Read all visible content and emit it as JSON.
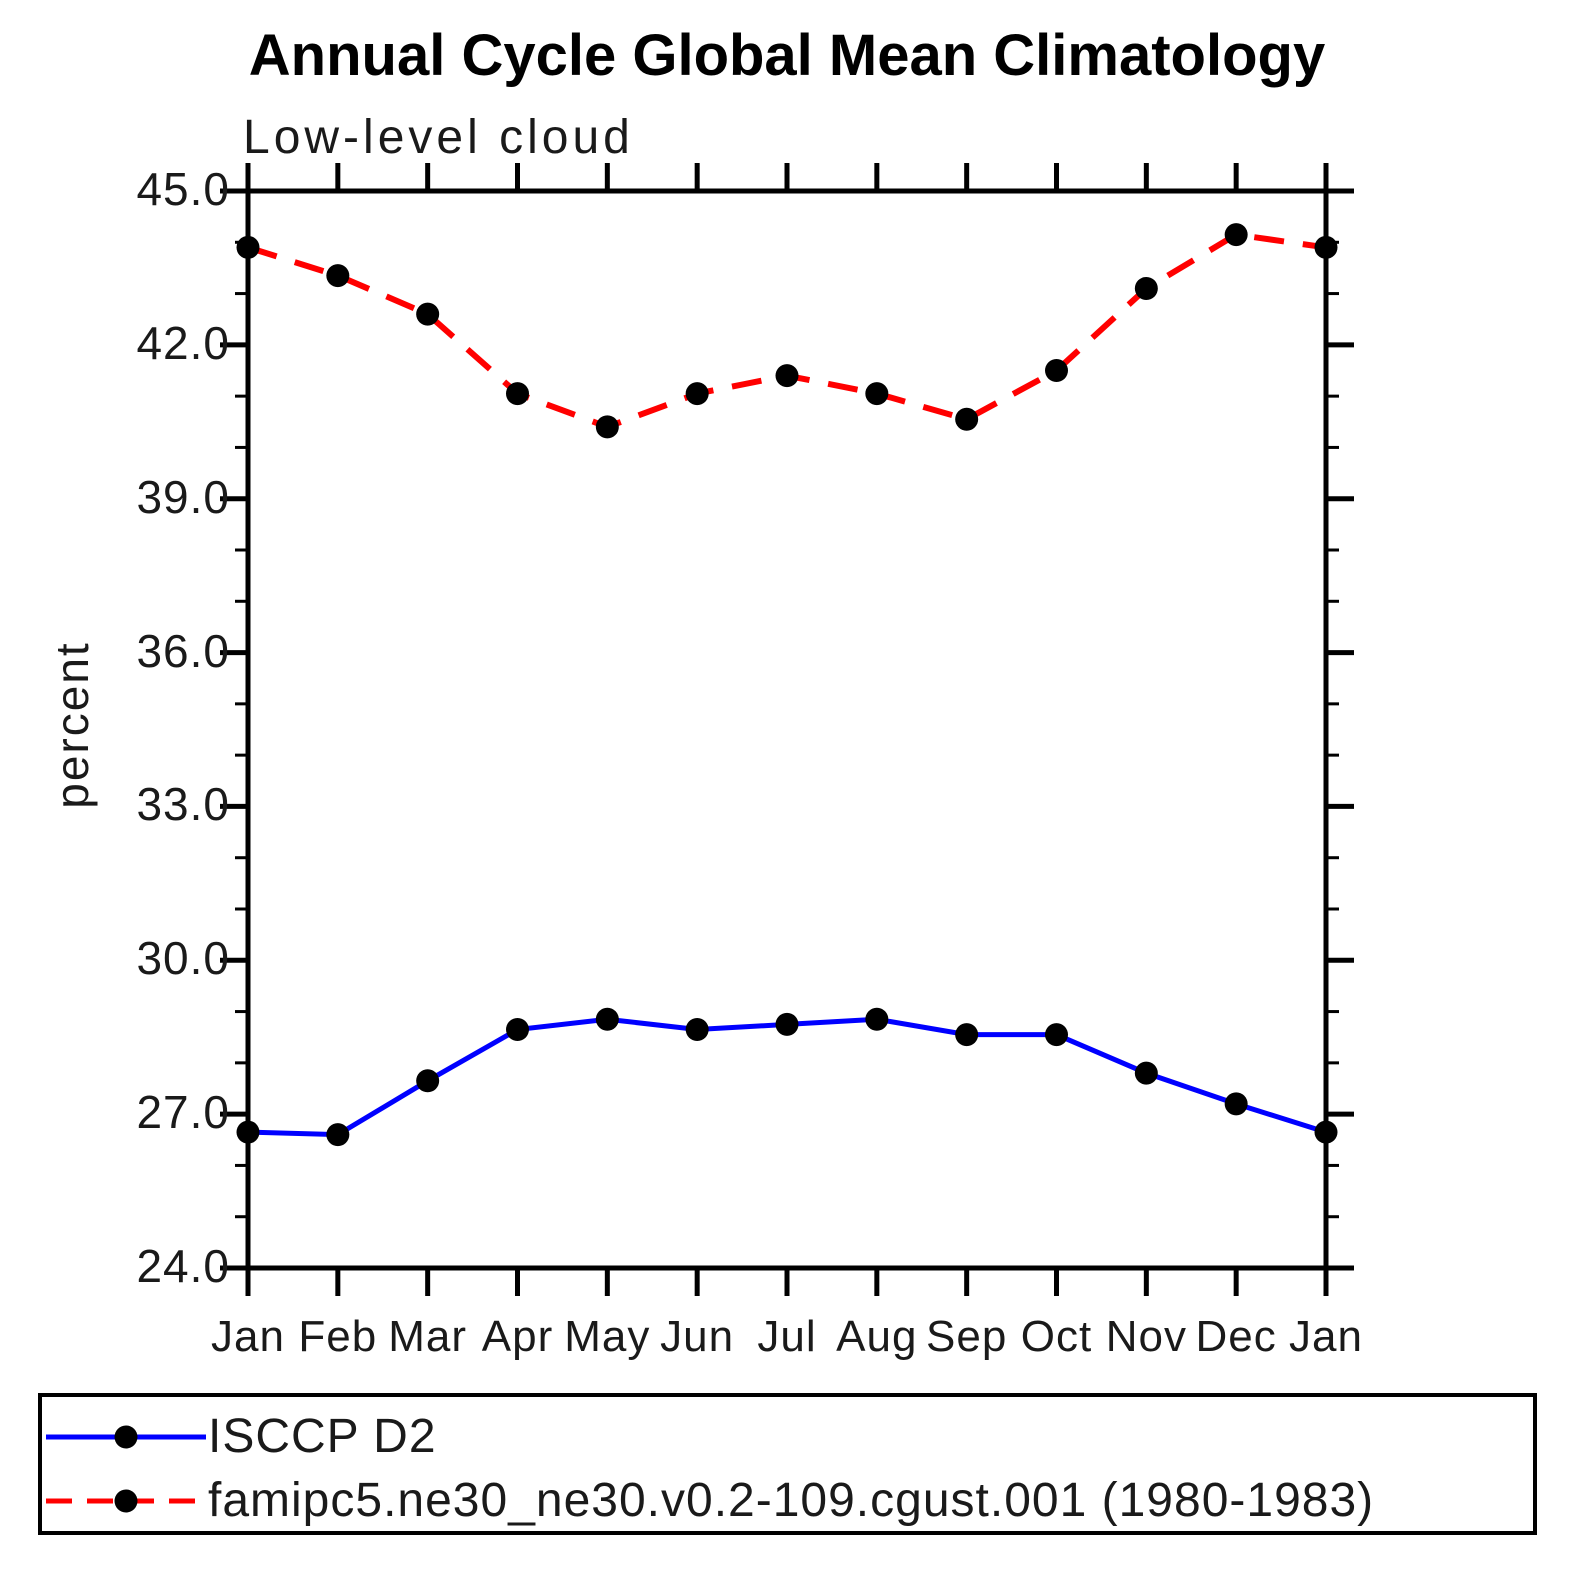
{
  "header": {
    "title": "Annual Cycle Global Mean Climatology",
    "subtitle": "Low-level cloud"
  },
  "axes": {
    "y": {
      "label": "percent",
      "min": 24.0,
      "max": 45.0,
      "major_step": 3.0,
      "minor_step": 1.0,
      "major_tick_labels": [
        "24.0",
        "27.0",
        "30.0",
        "33.0",
        "36.0",
        "39.0",
        "42.0",
        "45.0"
      ]
    },
    "x": {
      "categories": [
        "Jan",
        "Feb",
        "Mar",
        "Apr",
        "May",
        "Jun",
        "Jul",
        "Aug",
        "Sep",
        "Oct",
        "Nov",
        "Dec",
        "Jan"
      ]
    }
  },
  "legend": {
    "items": [
      {
        "label": "ISCCP D2",
        "color": "#0000ff",
        "line_style": "solid",
        "marker": "filled-circle"
      },
      {
        "label": "famipc5.ne30_ne30.v0.2-109.cgust.001 (1980-1983)",
        "color": "#ff0000",
        "line_style": "dashed",
        "marker": "filled-circle"
      }
    ]
  },
  "chart_data": {
    "type": "line",
    "title": "Annual Cycle Global Mean Climatology",
    "subtitle": "Low-level cloud",
    "xlabel": "",
    "ylabel": "percent",
    "ylim": [
      24.0,
      45.0
    ],
    "y_major_step": 3.0,
    "y_minor_step": 1.0,
    "grid": false,
    "legend_position": "bottom-box",
    "categories": [
      "Jan",
      "Feb",
      "Mar",
      "Apr",
      "May",
      "Jun",
      "Jul",
      "Aug",
      "Sep",
      "Oct",
      "Nov",
      "Dec",
      "Jan"
    ],
    "series": [
      {
        "name": "ISCCP D2",
        "color": "#0000ff",
        "dash": "solid",
        "marker_color": "#000000",
        "values": [
          26.65,
          26.6,
          27.65,
          28.65,
          28.85,
          28.65,
          28.75,
          28.85,
          28.55,
          28.55,
          27.8,
          27.2,
          26.65
        ]
      },
      {
        "name": "famipc5.ne30_ne30.v0.2-109.cgust.001 (1980-1983)",
        "color": "#ff0000",
        "dash": "dashed",
        "marker_color": "#000000",
        "values": [
          43.9,
          43.35,
          42.6,
          41.05,
          40.4,
          41.05,
          41.4,
          41.05,
          40.55,
          41.5,
          43.1,
          44.15,
          43.9
        ]
      }
    ]
  }
}
